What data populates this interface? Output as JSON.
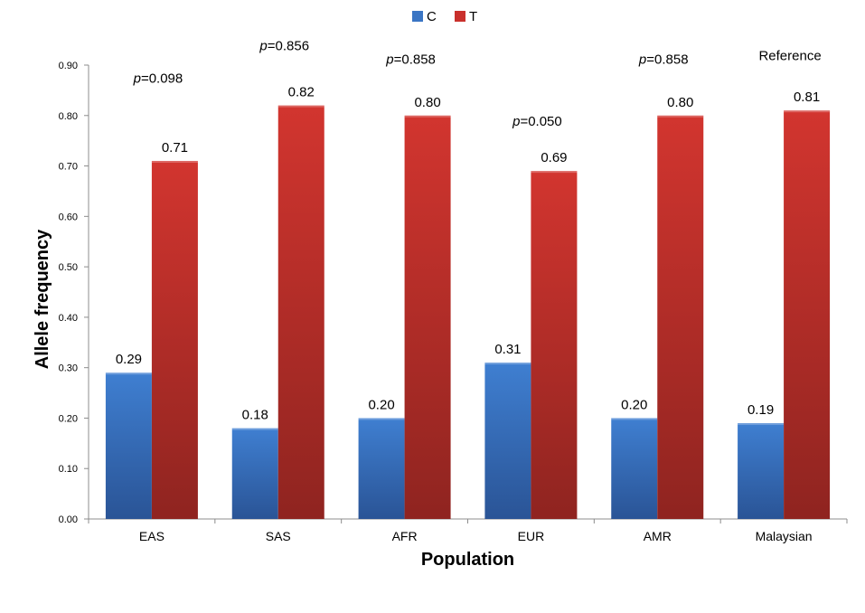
{
  "chart_data": {
    "type": "bar",
    "title": "",
    "xlabel": "Population",
    "ylabel": "Allele frequency",
    "ylim": [
      0,
      0.9
    ],
    "yticks": [
      "0.00",
      "0.10",
      "0.20",
      "0.30",
      "0.40",
      "0.50",
      "0.60",
      "0.70",
      "0.80",
      "0.90"
    ],
    "legend_position": "top-center",
    "categories": [
      "EAS",
      "SAS",
      "AFR",
      "EUR",
      "AMR",
      "Malaysian"
    ],
    "series": [
      {
        "name": "C",
        "color": "#3a75c4",
        "values": [
          0.29,
          0.18,
          0.2,
          0.31,
          0.2,
          0.19
        ],
        "labels": [
          "0.29",
          "0.18",
          "0.20",
          "0.31",
          "0.20",
          "0.19"
        ]
      },
      {
        "name": "T",
        "color": "#c9302c",
        "values": [
          0.71,
          0.82,
          0.8,
          0.69,
          0.8,
          0.81
        ],
        "labels": [
          "0.71",
          "0.82",
          "0.80",
          "0.69",
          "0.80",
          "0.81"
        ]
      }
    ],
    "annotations": [
      {
        "category": "EAS",
        "prefix": "p",
        "text": "=0.098",
        "level": 0.865
      },
      {
        "category": "SAS",
        "prefix": "p",
        "text": "=0.856",
        "level": 0.93
      },
      {
        "category": "AFR",
        "prefix": "p",
        "text": "=0.858",
        "level": 0.903
      },
      {
        "category": "EUR",
        "prefix": "p",
        "text": "=0.050",
        "level": 0.78
      },
      {
        "category": "AMR",
        "prefix": "p",
        "text": "=0.858",
        "level": 0.903
      },
      {
        "category": "Malaysian",
        "prefix": "",
        "text": "Reference",
        "level": 0.91
      }
    ]
  }
}
